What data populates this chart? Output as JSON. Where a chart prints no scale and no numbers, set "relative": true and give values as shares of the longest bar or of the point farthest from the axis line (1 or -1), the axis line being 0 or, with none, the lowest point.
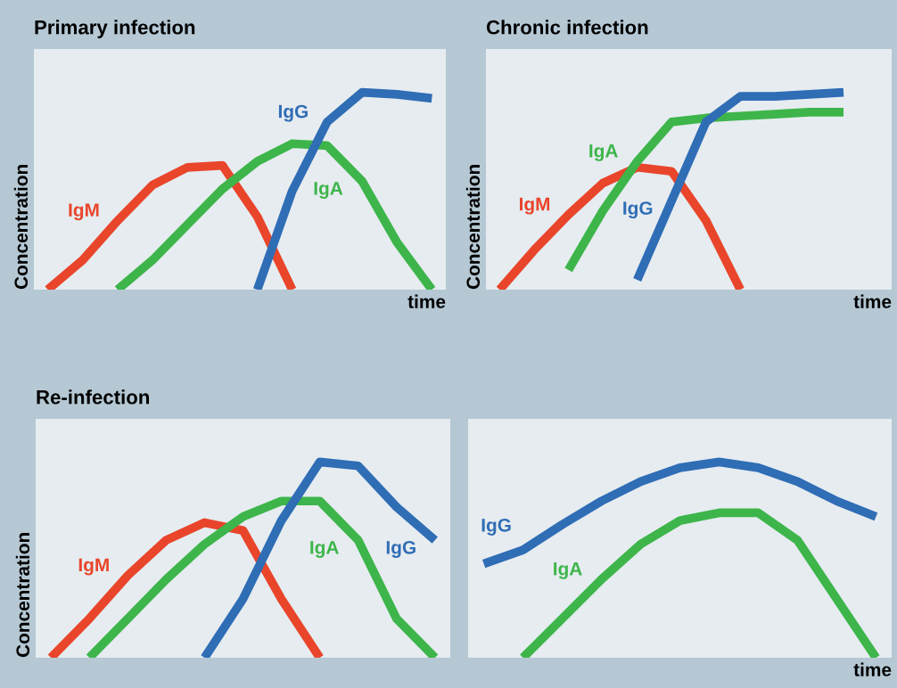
{
  "chart_data": [
    {
      "type": "line",
      "title": "Primary infection",
      "xlabel": "time",
      "ylabel": "Concentration",
      "relative": true,
      "legend": false,
      "grid": false,
      "tick_labels": false,
      "categories": [
        null,
        null,
        null,
        null,
        null,
        null,
        null,
        null,
        null,
        null,
        null,
        null
      ],
      "series": [
        {
          "name": "IgM",
          "color": "#e9452b",
          "values": [
            0,
            0.15,
            0.35,
            0.53,
            0.62,
            0.63,
            0.37,
            0,
            null,
            null,
            null,
            null
          ]
        },
        {
          "name": "IgA",
          "color": "#3db54a",
          "values": [
            null,
            null,
            0,
            0.15,
            0.33,
            0.51,
            0.65,
            0.74,
            0.73,
            0.55,
            0.24,
            0
          ]
        },
        {
          "name": "IgG",
          "color": "#2f6db5",
          "values": [
            null,
            null,
            null,
            null,
            null,
            null,
            0,
            0.5,
            0.85,
            1,
            0.99,
            0.97
          ]
        }
      ]
    },
    {
      "type": "line",
      "title": "Chronic infection",
      "xlabel": "time",
      "ylabel": "Concentration",
      "relative": true,
      "legend": false,
      "grid": false,
      "tick_labels": false,
      "categories": [
        null,
        null,
        null,
        null,
        null,
        null,
        null,
        null,
        null,
        null,
        null,
        null
      ],
      "series": [
        {
          "name": "IgM",
          "color": "#e9452b",
          "values": [
            0,
            0.2,
            0.38,
            0.54,
            0.62,
            0.6,
            0.35,
            0,
            null,
            null,
            null,
            null
          ]
        },
        {
          "name": "IgA",
          "color": "#3db54a",
          "values": [
            null,
            null,
            0.1,
            0.4,
            0.65,
            0.85,
            0.87,
            0.88,
            0.89,
            0.9,
            0.9,
            null
          ]
        },
        {
          "name": "IgG",
          "color": "#2f6db5",
          "values": [
            null,
            null,
            null,
            null,
            0.05,
            0.45,
            0.85,
            0.98,
            0.98,
            0.99,
            1,
            null
          ]
        }
      ]
    },
    {
      "type": "line",
      "title": "Re-infection",
      "ylabel": "Concentration",
      "relative": true,
      "legend": false,
      "grid": false,
      "tick_labels": false,
      "categories": [
        null,
        null,
        null,
        null,
        null,
        null,
        null,
        null,
        null,
        null,
        null
      ],
      "series": [
        {
          "name": "IgM",
          "color": "#e9452b",
          "values": [
            0,
            0.2,
            0.42,
            0.6,
            0.69,
            0.65,
            0.3,
            0,
            null,
            null,
            null
          ]
        },
        {
          "name": "IgA",
          "color": "#3db54a",
          "values": [
            null,
            0,
            0.2,
            0.4,
            0.58,
            0.72,
            0.8,
            0.8,
            0.6,
            0.2,
            0
          ]
        },
        {
          "name": "IgG",
          "color": "#2f6db5",
          "values": [
            null,
            null,
            null,
            null,
            0,
            0.3,
            0.7,
            1,
            0.98,
            0.77,
            0.6
          ]
        }
      ]
    },
    {
      "type": "line",
      "xlabel": "time",
      "relative": true,
      "legend": false,
      "grid": false,
      "tick_labels": false,
      "categories": [
        null,
        null,
        null,
        null,
        null,
        null,
        null,
        null,
        null,
        null,
        null
      ],
      "series": [
        {
          "name": "IgG",
          "color": "#2f6db5",
          "values": [
            0.48,
            0.55,
            0.68,
            0.8,
            0.9,
            0.97,
            1,
            0.97,
            0.9,
            0.8,
            0.72
          ]
        },
        {
          "name": "IgA",
          "color": "#3db54a",
          "values": [
            null,
            0,
            0.2,
            0.4,
            0.58,
            0.7,
            0.74,
            0.74,
            0.6,
            0.3,
            0
          ]
        }
      ]
    }
  ]
}
